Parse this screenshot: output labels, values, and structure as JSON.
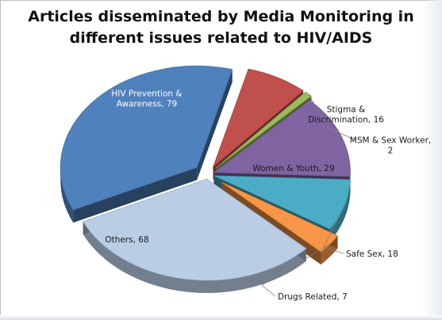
{
  "chart_data": {
    "type": "pie",
    "title_line1": "Articles disseminated by Media Monitoring in",
    "title_line2": "different issues related to HIV/AIDS",
    "slices": [
      {
        "label_lines": [
          "Stigma &",
          "Discrimination, 16"
        ],
        "category": "Stigma & Discrimination",
        "value": 16,
        "color": "#c0504d"
      },
      {
        "label_lines": [
          "MSM & Sex Worker,",
          "2"
        ],
        "category": "MSM & Sex Worker",
        "value": 2,
        "color": "#9bbb59"
      },
      {
        "label_lines": [
          "Women & Youth, 29"
        ],
        "category": "Women & Youth",
        "value": 29,
        "color": "#8064a2"
      },
      {
        "label_lines": [
          "Safe Sex, 18"
        ],
        "category": "Safe Sex",
        "value": 18,
        "color": "#4bacc6"
      },
      {
        "label_lines": [
          "Drugs Related, 7"
        ],
        "category": "Drugs Related",
        "value": 7,
        "color": "#f79646"
      },
      {
        "label_lines": [
          "Others, 68"
        ],
        "category": "Others",
        "value": 68,
        "color": "#b9cde5"
      },
      {
        "label_lines": [
          "HIV Prevention &",
          "Awareness, 79"
        ],
        "category": "HIV Prevention & Awareness",
        "value": 79,
        "color": "#4f81bd"
      }
    ]
  }
}
